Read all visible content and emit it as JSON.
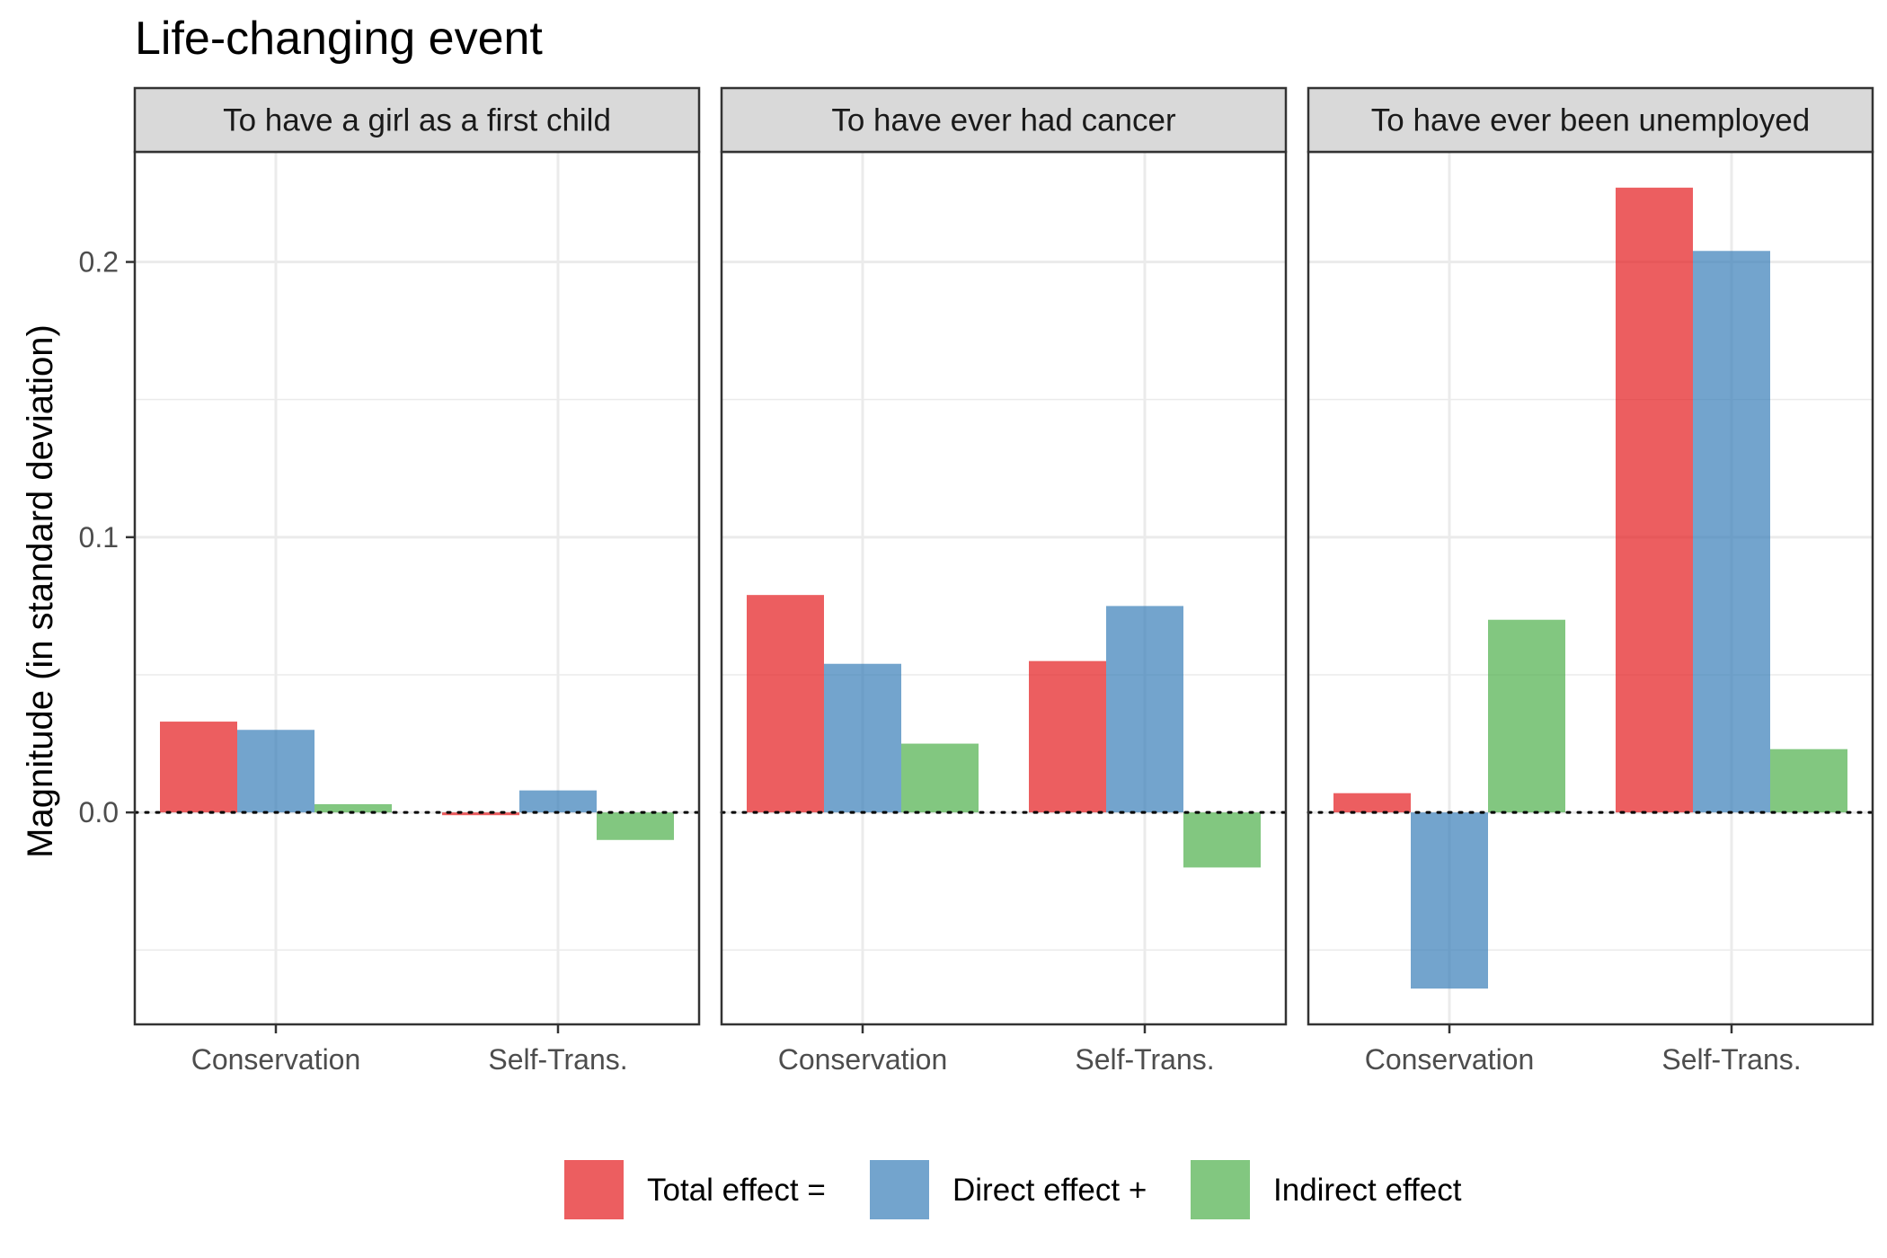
{
  "chart_data": {
    "type": "bar",
    "title": "Life-changing event",
    "ylabel": "Magnitude (in standard deviation)",
    "xlabel": "",
    "ylim": [
      -0.077,
      0.24
    ],
    "yticks": [
      0.0,
      0.1,
      0.2
    ],
    "ytick_labels": [
      "0.0",
      "0.1",
      "0.2"
    ],
    "grid": true,
    "legend_position": "bottom",
    "categories": [
      "Conservation",
      "Self-Trans."
    ],
    "series_names": [
      "Total effect =",
      "Direct effect +",
      "Indirect effect"
    ],
    "colors": [
      "#e41a1c",
      "#377eb8",
      "#4daf4a"
    ],
    "panels": [
      {
        "label": "To have a girl as a first child",
        "series": [
          {
            "name": "Total effect =",
            "values": [
              0.033,
              -0.001
            ]
          },
          {
            "name": "Direct effect +",
            "values": [
              0.03,
              0.008
            ]
          },
          {
            "name": "Indirect effect",
            "values": [
              0.003,
              -0.01
            ]
          }
        ]
      },
      {
        "label": "To have ever had cancer",
        "series": [
          {
            "name": "Total effect =",
            "values": [
              0.079,
              0.055
            ]
          },
          {
            "name": "Direct effect +",
            "values": [
              0.054,
              0.075
            ]
          },
          {
            "name": "Indirect effect",
            "values": [
              0.025,
              -0.02
            ]
          }
        ]
      },
      {
        "label": "To have ever been unemployed",
        "series": [
          {
            "name": "Total effect =",
            "values": [
              0.007,
              0.227
            ]
          },
          {
            "name": "Direct effect +",
            "values": [
              -0.064,
              0.204
            ]
          },
          {
            "name": "Indirect effect",
            "values": [
              0.07,
              0.023
            ]
          }
        ]
      }
    ]
  }
}
